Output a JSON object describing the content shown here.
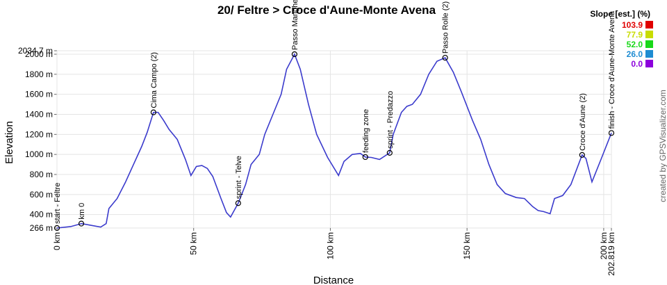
{
  "chart_data": {
    "type": "line",
    "title": "20/ Feltre > Croce d'Aune-Monte Avena",
    "x_label": "Distance",
    "y_label": "Elevation",
    "credit": "created by GPSVisualizer.com",
    "xlim": [
      0,
      202.819
    ],
    "ylim": [
      266,
      2034.7
    ],
    "xticks": [
      {
        "value": 0,
        "label": "0 km"
      },
      {
        "value": 50,
        "label": "50 km"
      },
      {
        "value": 100,
        "label": "100 km"
      },
      {
        "value": 150,
        "label": "150 km"
      },
      {
        "value": 200,
        "label": "200 km"
      },
      {
        "value": 202.819,
        "label": "202.819 km"
      }
    ],
    "yticks": [
      {
        "value": 266,
        "label": "266 m"
      },
      {
        "value": 400,
        "label": "400 m"
      },
      {
        "value": 600,
        "label": "600 m"
      },
      {
        "value": 800,
        "label": "800 m"
      },
      {
        "value": 1000,
        "label": "1000 m"
      },
      {
        "value": 1200,
        "label": "1200 m"
      },
      {
        "value": 1400,
        "label": "1400 m"
      },
      {
        "value": 1600,
        "label": "1600 m"
      },
      {
        "value": 1800,
        "label": "1800 m"
      },
      {
        "value": 2000,
        "label": "2000 m"
      },
      {
        "value": 2034.7,
        "label": "2034.7 m"
      }
    ],
    "grid": true,
    "x": [
      0,
      5,
      9,
      12,
      16,
      18,
      19,
      22,
      25,
      28,
      31,
      33,
      35.3,
      37,
      39,
      41,
      44,
      47,
      49,
      51,
      53,
      55,
      57,
      60,
      62,
      63.5,
      66.3,
      69,
      71,
      74,
      76,
      79,
      82,
      84,
      86.9,
      89,
      92,
      95,
      99,
      103,
      105,
      108,
      111,
      112.8,
      115,
      118,
      121.7,
      123,
      126,
      128,
      130,
      133,
      136,
      139,
      142,
      145,
      148,
      152,
      155,
      158,
      161,
      164,
      168,
      171,
      174,
      176,
      178,
      180.4,
      182,
      185,
      188,
      192.1,
      193.5,
      195.7,
      199,
      202.819
    ],
    "series": [
      {
        "name": "Elevation",
        "color": "#3a3acc",
        "values": [
          266,
          280,
          310,
          295,
          275,
          310,
          460,
          560,
          720,
          900,
          1080,
          1220,
          1420,
          1420,
          1340,
          1250,
          1150,
          950,
          790,
          880,
          890,
          860,
          780,
          560,
          420,
          375,
          514,
          700,
          900,
          1000,
          1200,
          1400,
          1600,
          1850,
          2000,
          1850,
          1500,
          1200,
          970,
          790,
          930,
          1000,
          1010,
          974,
          970,
          950,
          1016,
          1200,
          1420,
          1480,
          1500,
          1600,
          1800,
          1930,
          1965,
          1820,
          1620,
          1340,
          1150,
          900,
          700,
          610,
          570,
          560,
          480,
          440,
          430,
          408,
          560,
          590,
          700,
          995,
          960,
          726,
          950,
          1214
        ]
      }
    ],
    "waypoints": {
      "x": [
        0,
        8.9,
        35.3,
        66.3,
        86.9,
        112.8,
        121.7,
        142,
        192.1,
        202.819
      ],
      "y": [
        266,
        310,
        1420,
        514,
        2000,
        974,
        1016,
        1965,
        995,
        1214
      ],
      "labels": [
        "start - Feltre",
        "km 0",
        "Cima Campo (2)",
        "sprint - Telve",
        "Passo Manghen",
        "feeding zone",
        "sprint - Predazzo",
        "Passo Rolle (2)",
        "Croce d'Aune (2)",
        "finish - Croce d'Aune-Monte Avena"
      ]
    },
    "legend": {
      "title": "Slope [est.] (%)",
      "items": [
        {
          "label": "103.9",
          "color": "#e00000"
        },
        {
          "label": "77.9",
          "color": "#c8dc00"
        },
        {
          "label": "52.0",
          "color": "#18d818"
        },
        {
          "label": "26.0",
          "color": "#1e8cd2"
        },
        {
          "label": "0.0",
          "color": "#8c00dc"
        }
      ]
    }
  }
}
